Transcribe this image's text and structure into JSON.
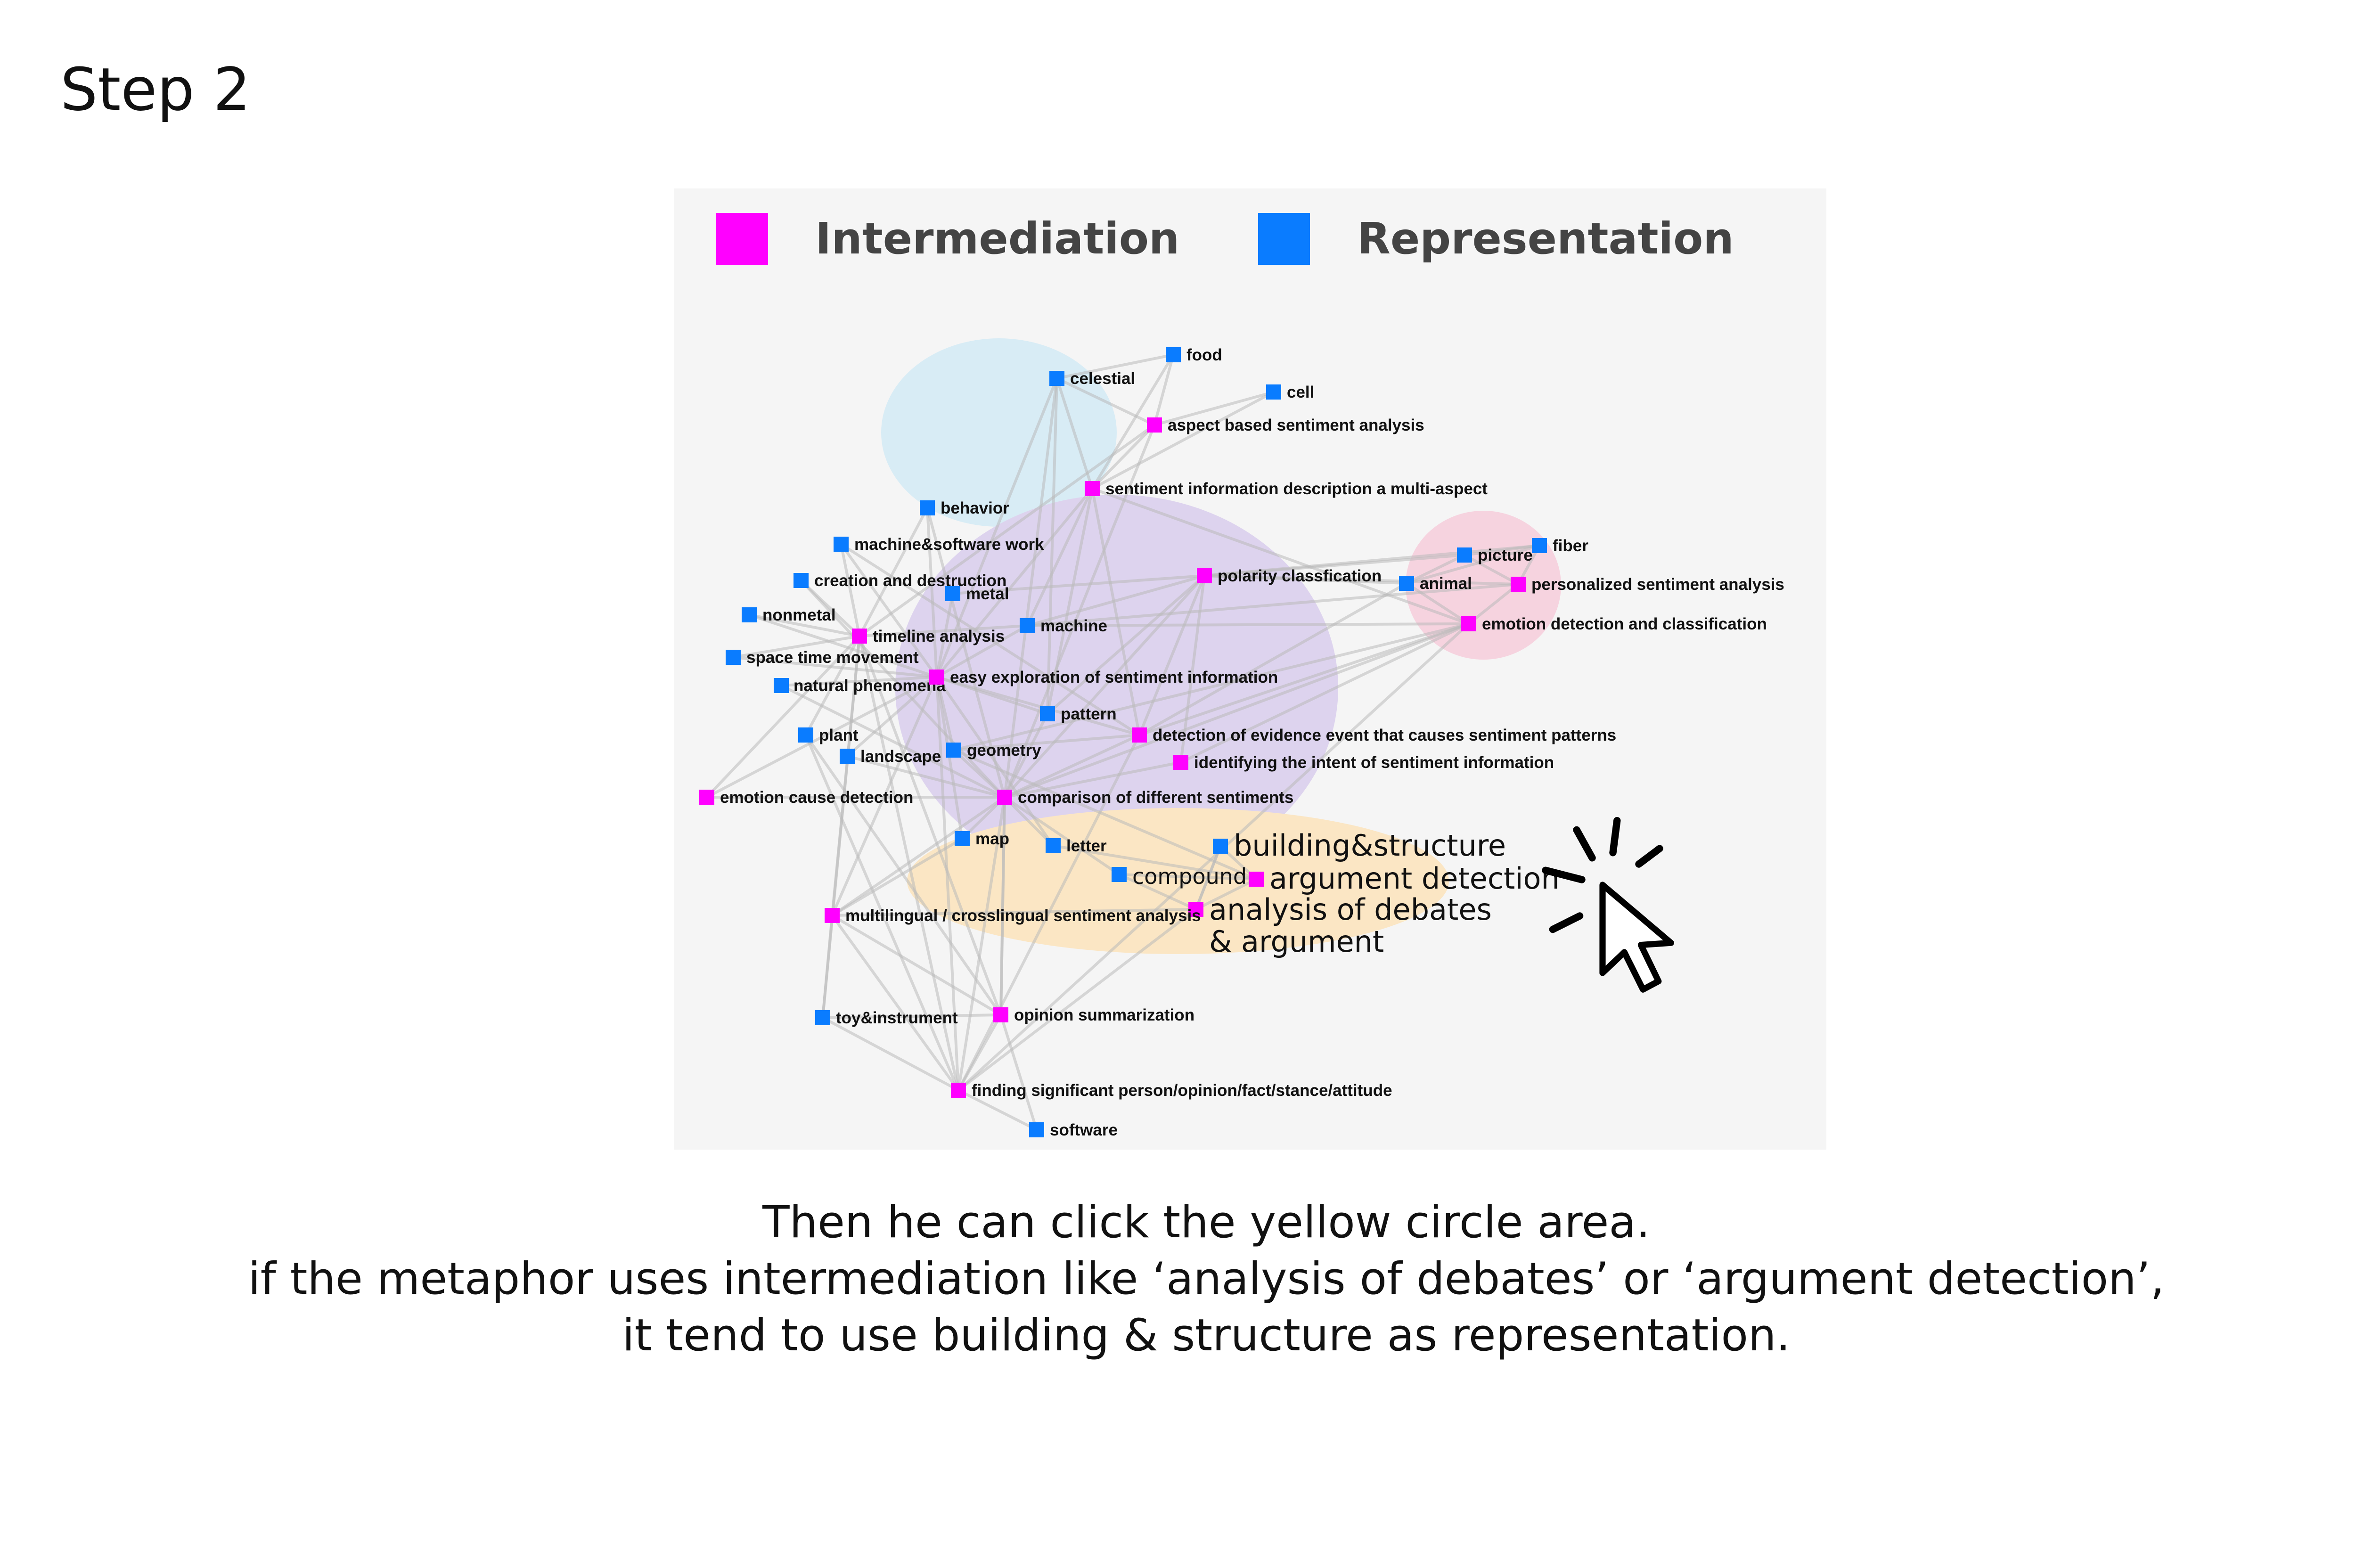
{
  "step_title": "Step 2",
  "colors": {
    "intermediation": "#ff00ff",
    "representation": "#0a7cff",
    "cluster_blue": "#d8ecf5",
    "cluster_purple": "#ddd3ee",
    "cluster_pink": "#f6d3df",
    "cluster_yellow": "#fbe6c4"
  },
  "legend": [
    {
      "label": "Intermediation",
      "type": "intermediation"
    },
    {
      "label": "Representation",
      "type": "representation"
    }
  ],
  "nodes": [
    {
      "id": "celestial",
      "label": "celestial",
      "type": "representation"
    },
    {
      "id": "food",
      "label": "food",
      "type": "representation"
    },
    {
      "id": "cell",
      "label": "cell",
      "type": "representation"
    },
    {
      "id": "absa",
      "label": "aspect based sentiment analysis",
      "type": "intermediation"
    },
    {
      "id": "sidma",
      "label": "sentiment information description a multi-aspect",
      "type": "intermediation"
    },
    {
      "id": "behavior",
      "label": "behavior",
      "type": "representation"
    },
    {
      "id": "msw",
      "label": "machine&software work",
      "type": "representation"
    },
    {
      "id": "cad",
      "label": "creation and destruction",
      "type": "representation"
    },
    {
      "id": "metal",
      "label": "metal",
      "type": "representation"
    },
    {
      "id": "nonmetal",
      "label": "nonmetal",
      "type": "representation"
    },
    {
      "id": "timeline",
      "label": "timeline analysis",
      "type": "intermediation"
    },
    {
      "id": "machine",
      "label": "machine",
      "type": "representation"
    },
    {
      "id": "stm",
      "label": "space time movement",
      "type": "representation"
    },
    {
      "id": "natural",
      "label": "natural phenomena",
      "type": "representation"
    },
    {
      "id": "easy",
      "label": "easy exploration of sentiment information",
      "type": "intermediation"
    },
    {
      "id": "pattern",
      "label": "pattern",
      "type": "representation"
    },
    {
      "id": "plant",
      "label": "plant",
      "type": "representation"
    },
    {
      "id": "landscape",
      "label": "landscape",
      "type": "representation"
    },
    {
      "id": "geometry",
      "label": "geometry",
      "type": "representation"
    },
    {
      "id": "ecd",
      "label": "emotion cause detection",
      "type": "intermediation"
    },
    {
      "id": "cds",
      "label": "comparison of different sentiments",
      "type": "intermediation"
    },
    {
      "id": "deecsp",
      "label": "detection of evidence event that causes sentiment patterns",
      "type": "intermediation"
    },
    {
      "id": "iisi",
      "label": "identifying the intent of sentiment information",
      "type": "intermediation"
    },
    {
      "id": "polarity",
      "label": "polarity classfication",
      "type": "intermediation"
    },
    {
      "id": "picture",
      "label": "picture",
      "type": "representation"
    },
    {
      "id": "fiber",
      "label": "fiber",
      "type": "representation"
    },
    {
      "id": "animal",
      "label": "animal",
      "type": "representation"
    },
    {
      "id": "psa",
      "label": "personalized sentiment analysis",
      "type": "intermediation"
    },
    {
      "id": "edc",
      "label": "emotion detection and classification",
      "type": "intermediation"
    },
    {
      "id": "map",
      "label": "map",
      "type": "representation"
    },
    {
      "id": "letter",
      "label": "letter",
      "type": "representation"
    },
    {
      "id": "bs",
      "label": "building&structure",
      "type": "representation"
    },
    {
      "id": "compound",
      "label": "compound",
      "type": "representation"
    },
    {
      "id": "ad",
      "label": "argument detection",
      "type": "intermediation"
    },
    {
      "id": "aoda",
      "label": "analysis of debates & argument",
      "type": "intermediation"
    },
    {
      "id": "mcsa",
      "label": "multilingual / crosslingual sentiment analysis",
      "type": "intermediation"
    },
    {
      "id": "toy",
      "label": "toy&instrument",
      "type": "representation"
    },
    {
      "id": "os",
      "label": "opinion summarization",
      "type": "intermediation"
    },
    {
      "id": "fsp",
      "label": "finding significant person/opinion/fact/stance/attitude",
      "type": "intermediation"
    },
    {
      "id": "software",
      "label": "software",
      "type": "representation"
    }
  ],
  "edges": [
    [
      "celestial",
      "absa"
    ],
    [
      "celestial",
      "food"
    ],
    [
      "celestial",
      "sidma"
    ],
    [
      "celestial",
      "cds"
    ],
    [
      "celestial",
      "easy"
    ],
    [
      "celestial",
      "pattern"
    ],
    [
      "food",
      "absa"
    ],
    [
      "food",
      "sidma"
    ],
    [
      "cell",
      "absa"
    ],
    [
      "cell",
      "sidma"
    ],
    [
      "absa",
      "sidma"
    ],
    [
      "absa",
      "cds"
    ],
    [
      "absa",
      "timeline"
    ],
    [
      "sidma",
      "machine"
    ],
    [
      "sidma",
      "easy"
    ],
    [
      "sidma",
      "pattern"
    ],
    [
      "sidma",
      "edc"
    ],
    [
      "sidma",
      "deecsp"
    ],
    [
      "behavior",
      "timeline"
    ],
    [
      "behavior",
      "easy"
    ],
    [
      "behavior",
      "cds"
    ],
    [
      "msw",
      "timeline"
    ],
    [
      "msw",
      "easy"
    ],
    [
      "msw",
      "deecsp"
    ],
    [
      "cad",
      "timeline"
    ],
    [
      "cad",
      "cds"
    ],
    [
      "metal",
      "easy"
    ],
    [
      "metal",
      "polarity"
    ],
    [
      "nonmetal",
      "timeline"
    ],
    [
      "nonmetal",
      "easy"
    ],
    [
      "timeline",
      "machine"
    ],
    [
      "timeline",
      "stm"
    ],
    [
      "timeline",
      "mcsa"
    ],
    [
      "timeline",
      "os"
    ],
    [
      "timeline",
      "fsp"
    ],
    [
      "machine",
      "polarity"
    ],
    [
      "machine",
      "psa"
    ],
    [
      "machine",
      "edc"
    ],
    [
      "machine",
      "easy"
    ],
    [
      "stm",
      "easy"
    ],
    [
      "natural",
      "easy"
    ],
    [
      "natural",
      "cds"
    ],
    [
      "easy",
      "pattern"
    ],
    [
      "easy",
      "deecsp"
    ],
    [
      "easy",
      "fsp"
    ],
    [
      "easy",
      "mcsa"
    ],
    [
      "pattern",
      "polarity"
    ],
    [
      "pattern",
      "cds"
    ],
    [
      "plant",
      "timeline"
    ],
    [
      "plant",
      "fsp"
    ],
    [
      "plant",
      "os"
    ],
    [
      "landscape",
      "easy"
    ],
    [
      "landscape",
      "cds"
    ],
    [
      "geometry",
      "cds"
    ],
    [
      "geometry",
      "ad"
    ],
    [
      "geometry",
      "deecsp"
    ],
    [
      "geometry",
      "easy"
    ],
    [
      "ecd",
      "easy"
    ],
    [
      "ecd",
      "cds"
    ],
    [
      "ecd",
      "timeline"
    ],
    [
      "cds",
      "iisi"
    ],
    [
      "cds",
      "deecsp"
    ],
    [
      "cds",
      "mcsa"
    ],
    [
      "cds",
      "os"
    ],
    [
      "cds",
      "fsp"
    ],
    [
      "deecsp",
      "edc"
    ],
    [
      "deecsp",
      "polarity"
    ],
    [
      "deecsp",
      "animal"
    ],
    [
      "iisi",
      "edc"
    ],
    [
      "iisi",
      "polarity"
    ],
    [
      "polarity",
      "picture"
    ],
    [
      "polarity",
      "fiber"
    ],
    [
      "polarity",
      "animal"
    ],
    [
      "polarity",
      "psa"
    ],
    [
      "polarity",
      "cds"
    ],
    [
      "picture",
      "fiber"
    ],
    [
      "picture",
      "animal"
    ],
    [
      "picture",
      "psa"
    ],
    [
      "fiber",
      "animal"
    ],
    [
      "fiber",
      "psa"
    ],
    [
      "animal",
      "edc"
    ],
    [
      "psa",
      "edc"
    ],
    [
      "edc",
      "cds"
    ],
    [
      "edc",
      "geometry"
    ],
    [
      "map",
      "mcsa"
    ],
    [
      "map",
      "cds"
    ],
    [
      "map",
      "easy"
    ],
    [
      "letter",
      "ad"
    ],
    [
      "letter",
      "cds"
    ],
    [
      "letter",
      "easy"
    ],
    [
      "bs",
      "ad"
    ],
    [
      "bs",
      "aoda"
    ],
    [
      "compound",
      "ad"
    ],
    [
      "compound",
      "aoda"
    ],
    [
      "compound",
      "cds"
    ],
    [
      "ad",
      "aoda"
    ],
    [
      "aoda",
      "bs"
    ],
    [
      "mcsa",
      "os"
    ],
    [
      "mcsa",
      "aoda"
    ],
    [
      "mcsa",
      "fsp"
    ],
    [
      "mcsa",
      "toy"
    ],
    [
      "toy",
      "fsp"
    ],
    [
      "toy",
      "os"
    ],
    [
      "toy",
      "timeline"
    ],
    [
      "os",
      "fsp"
    ],
    [
      "os",
      "cds"
    ],
    [
      "fsp",
      "software"
    ],
    [
      "fsp",
      "deecsp"
    ],
    [
      "fsp",
      "aoda"
    ],
    [
      "fsp",
      "edc"
    ],
    [
      "software",
      "os"
    ]
  ],
  "caption": [
    "Then he can click the yellow circle area.",
    "if the metaphor uses intermediation like ‘analysis of debates’ or ‘argument detection’,",
    "it tend to use building & structure as representation."
  ]
}
